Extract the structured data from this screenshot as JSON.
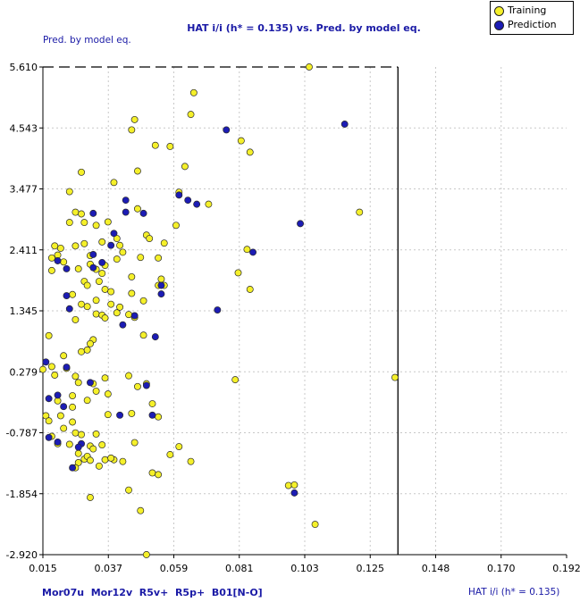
{
  "title": "HAT i/i (h* = 0.135) vs. Pred. by model eq.",
  "y_axis_title": "Pred. by model eq.",
  "x_axis_title": "HAT i/i (h* = 0.135)",
  "descriptors": "Mor07u  Mor12v  R5v+  R5p+  B01[N-O]",
  "legend": {
    "training": "Training",
    "prediction": "Prediction"
  },
  "colors": {
    "training": "#f5f02a",
    "prediction": "#1c1cb4",
    "text_blue": "#1a1aa6"
  },
  "chart_data": {
    "type": "scatter",
    "title": "HAT i/i (h* = 0.135) vs. Pred. by model eq.",
    "xlabel": "HAT i/i (h* = 0.135)",
    "ylabel": "Pred. by model eq.",
    "xlim": [
      0.015,
      0.192
    ],
    "ylim": [
      -2.92,
      5.61
    ],
    "xticks": [
      "0.015",
      "0.037",
      "0.059",
      "0.081",
      "0.103",
      "0.125",
      "0.148",
      "0.170",
      "0.192"
    ],
    "yticks": [
      "5.610",
      "4.543",
      "3.477",
      "2.411",
      "1.345",
      "0.279",
      "-0.787",
      "-1.854",
      "-2.920"
    ],
    "h_star": 0.135,
    "grid": true,
    "legend_position": "top-right",
    "series": [
      {
        "name": "Training",
        "points": [
          [
            0.105,
            5.61
          ],
          [
            0.066,
            5.16
          ],
          [
            0.065,
            4.78
          ],
          [
            0.046,
            4.69
          ],
          [
            0.045,
            4.51
          ],
          [
            0.082,
            4.32
          ],
          [
            0.053,
            4.24
          ],
          [
            0.058,
            4.22
          ],
          [
            0.085,
            4.12
          ],
          [
            0.063,
            3.87
          ],
          [
            0.047,
            3.79
          ],
          [
            0.028,
            3.77
          ],
          [
            0.039,
            3.59
          ],
          [
            0.061,
            3.42
          ],
          [
            0.024,
            3.43
          ],
          [
            0.071,
            3.21
          ],
          [
            0.047,
            3.13
          ],
          [
            0.026,
            3.07
          ],
          [
            0.028,
            3.04
          ],
          [
            0.024,
            2.89
          ],
          [
            0.029,
            2.89
          ],
          [
            0.037,
            2.9
          ],
          [
            0.033,
            2.84
          ],
          [
            0.122,
            3.07
          ],
          [
            0.06,
            2.84
          ],
          [
            0.05,
            2.67
          ],
          [
            0.051,
            2.61
          ],
          [
            0.04,
            2.61
          ],
          [
            0.029,
            2.52
          ],
          [
            0.019,
            2.48
          ],
          [
            0.026,
            2.48
          ],
          [
            0.041,
            2.49
          ],
          [
            0.056,
            2.53
          ],
          [
            0.035,
            2.55
          ],
          [
            0.021,
            2.44
          ],
          [
            0.042,
            2.37
          ],
          [
            0.031,
            2.31
          ],
          [
            0.02,
            2.32
          ],
          [
            0.018,
            2.27
          ],
          [
            0.054,
            2.27
          ],
          [
            0.048,
            2.28
          ],
          [
            0.04,
            2.25
          ],
          [
            0.022,
            2.2
          ],
          [
            0.031,
            2.16
          ],
          [
            0.036,
            2.14
          ],
          [
            0.027,
            2.08
          ],
          [
            0.018,
            2.05
          ],
          [
            0.033,
            2.07
          ],
          [
            0.035,
            2.0
          ],
          [
            0.045,
            1.94
          ],
          [
            0.084,
            2.42
          ],
          [
            0.081,
            2.01
          ],
          [
            0.029,
            1.86
          ],
          [
            0.03,
            1.79
          ],
          [
            0.034,
            1.86
          ],
          [
            0.055,
            1.9
          ],
          [
            0.056,
            1.79
          ],
          [
            0.054,
            1.79
          ],
          [
            0.036,
            1.72
          ],
          [
            0.038,
            1.68
          ],
          [
            0.045,
            1.65
          ],
          [
            0.085,
            1.72
          ],
          [
            0.025,
            1.63
          ],
          [
            0.033,
            1.53
          ],
          [
            0.028,
            1.46
          ],
          [
            0.038,
            1.46
          ],
          [
            0.041,
            1.41
          ],
          [
            0.049,
            1.52
          ],
          [
            0.03,
            1.42
          ],
          [
            0.04,
            1.31
          ],
          [
            0.033,
            1.29
          ],
          [
            0.035,
            1.27
          ],
          [
            0.044,
            1.28
          ],
          [
            0.036,
            1.22
          ],
          [
            0.026,
            1.19
          ],
          [
            0.046,
            1.23
          ],
          [
            0.017,
            0.91
          ],
          [
            0.049,
            0.92
          ],
          [
            0.032,
            0.84
          ],
          [
            0.031,
            0.77
          ],
          [
            0.028,
            0.63
          ],
          [
            0.03,
            0.66
          ],
          [
            0.022,
            0.56
          ],
          [
            0.015,
            0.32
          ],
          [
            0.018,
            0.37
          ],
          [
            0.023,
            0.34
          ],
          [
            0.019,
            0.22
          ],
          [
            0.026,
            0.2
          ],
          [
            0.044,
            0.21
          ],
          [
            0.036,
            0.17
          ],
          [
            0.047,
            0.02
          ],
          [
            0.027,
            0.09
          ],
          [
            0.032,
            0.07
          ],
          [
            0.05,
            0.07
          ],
          [
            0.134,
            0.18
          ],
          [
            0.08,
            0.14
          ],
          [
            0.033,
            -0.06
          ],
          [
            0.037,
            -0.11
          ],
          [
            0.02,
            -0.23
          ],
          [
            0.025,
            -0.14
          ],
          [
            0.03,
            -0.22
          ],
          [
            0.052,
            -0.28
          ],
          [
            0.025,
            -0.34
          ],
          [
            0.037,
            -0.47
          ],
          [
            0.045,
            -0.45
          ],
          [
            0.054,
            -0.51
          ],
          [
            0.016,
            -0.49
          ],
          [
            0.021,
            -0.49
          ],
          [
            0.017,
            -0.58
          ],
          [
            0.025,
            -0.6
          ],
          [
            0.022,
            -0.71
          ],
          [
            0.026,
            -0.79
          ],
          [
            0.028,
            -0.82
          ],
          [
            0.033,
            -0.81
          ],
          [
            0.018,
            -0.85
          ],
          [
            0.02,
            -0.98
          ],
          [
            0.024,
            -0.99
          ],
          [
            0.031,
            -1.02
          ],
          [
            0.035,
            -1.0
          ],
          [
            0.046,
            -0.96
          ],
          [
            0.061,
            -1.03
          ],
          [
            0.058,
            -1.17
          ],
          [
            0.032,
            -1.07
          ],
          [
            0.027,
            -1.15
          ],
          [
            0.029,
            -1.25
          ],
          [
            0.03,
            -1.2
          ],
          [
            0.027,
            -1.31
          ],
          [
            0.031,
            -1.27
          ],
          [
            0.036,
            -1.26
          ],
          [
            0.039,
            -1.26
          ],
          [
            0.042,
            -1.29
          ],
          [
            0.034,
            -1.37
          ],
          [
            0.065,
            -1.29
          ],
          [
            0.026,
            -1.4
          ],
          [
            0.038,
            -1.23
          ],
          [
            0.052,
            -1.49
          ],
          [
            0.054,
            -1.52
          ],
          [
            0.098,
            -1.71
          ],
          [
            0.1,
            -1.7
          ],
          [
            0.044,
            -1.79
          ],
          [
            0.031,
            -1.92
          ],
          [
            0.048,
            -2.15
          ],
          [
            0.107,
            -2.39
          ],
          [
            0.05,
            -2.92
          ]
        ]
      },
      {
        "name": "Prediction",
        "points": [
          [
            0.077,
            4.51
          ],
          [
            0.117,
            4.61
          ],
          [
            0.067,
            3.21
          ],
          [
            0.061,
            3.37
          ],
          [
            0.064,
            3.28
          ],
          [
            0.043,
            3.28
          ],
          [
            0.043,
            3.07
          ],
          [
            0.049,
            3.05
          ],
          [
            0.032,
            3.05
          ],
          [
            0.102,
            2.87
          ],
          [
            0.039,
            2.7
          ],
          [
            0.038,
            2.49
          ],
          [
            0.086,
            2.37
          ],
          [
            0.032,
            2.33
          ],
          [
            0.02,
            2.22
          ],
          [
            0.035,
            2.19
          ],
          [
            0.032,
            2.1
          ],
          [
            0.023,
            2.08
          ],
          [
            0.055,
            1.79
          ],
          [
            0.055,
            1.64
          ],
          [
            0.023,
            1.61
          ],
          [
            0.024,
            1.38
          ],
          [
            0.046,
            1.26
          ],
          [
            0.074,
            1.36
          ],
          [
            0.042,
            1.1
          ],
          [
            0.053,
            0.89
          ],
          [
            0.016,
            0.45
          ],
          [
            0.023,
            0.36
          ],
          [
            0.031,
            0.09
          ],
          [
            0.05,
            0.04
          ],
          [
            0.02,
            -0.13
          ],
          [
            0.017,
            -0.19
          ],
          [
            0.022,
            -0.33
          ],
          [
            0.041,
            -0.48
          ],
          [
            0.052,
            -0.48
          ],
          [
            0.017,
            -0.87
          ],
          [
            0.02,
            -0.95
          ],
          [
            0.028,
            -0.98
          ],
          [
            0.027,
            -1.04
          ],
          [
            0.025,
            -1.4
          ],
          [
            0.1,
            -1.84
          ]
        ]
      }
    ]
  }
}
